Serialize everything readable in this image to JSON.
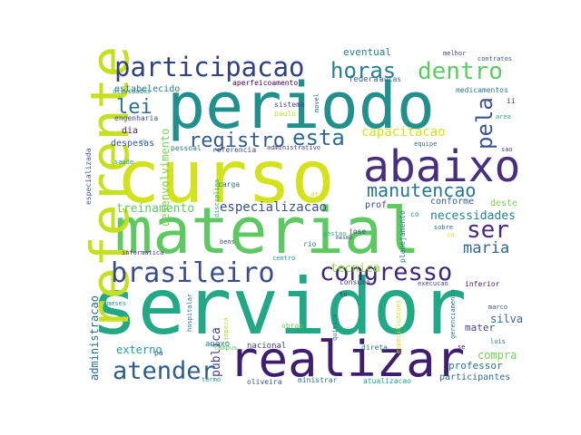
{
  "palette": {
    "yellow": "#d2e21b",
    "lime": "#7ad151",
    "green": "#5ec962",
    "teal": "#22a884",
    "cyan": "#1f9a8a",
    "blue": "#2a788e",
    "indigo": "#3b528b",
    "purple": "#472f7d",
    "dark": "#440154"
  },
  "words": [
    {
      "text": "servidor",
      "color": "#22a884"
    },
    {
      "text": "curso",
      "color": "#d2e21b"
    },
    {
      "text": "periodo",
      "color": "#21908d"
    },
    {
      "text": "material",
      "color": "#5ec962"
    },
    {
      "text": "realizar",
      "color": "#3e1f6d"
    },
    {
      "text": "referente",
      "color": "#c6e021"
    },
    {
      "text": "abaixo",
      "color": "#472f7d"
    },
    {
      "text": "brasileiro",
      "color": "#3b4c8a"
    },
    {
      "text": "participacao",
      "color": "#31427f"
    },
    {
      "text": "congresso",
      "color": "#3e2a71"
    },
    {
      "text": "atender",
      "color": "#2c5e8a"
    },
    {
      "text": "dentro",
      "color": "#5ec962"
    },
    {
      "text": "horas",
      "color": "#277f8e"
    },
    {
      "text": "esta",
      "color": "#2e6b8e"
    },
    {
      "text": "registro",
      "color": "#345c8d"
    },
    {
      "text": "lei",
      "color": "#2c728e"
    },
    {
      "text": "pela",
      "color": "#3b528b"
    },
    {
      "text": "ser",
      "color": "#472a7a"
    },
    {
      "text": "manutencao",
      "color": "#2a768e"
    },
    {
      "text": "maria",
      "color": "#30698e"
    },
    {
      "text": "capacitacao",
      "color": "#d2e21b"
    },
    {
      "text": "especializacao",
      "color": "#3b528b"
    },
    {
      "text": "treinamento",
      "color": "#5ec962"
    },
    {
      "text": "necessidades",
      "color": "#26828e"
    },
    {
      "text": "tecnica",
      "color": "#95d840"
    },
    {
      "text": "desenvolvimento",
      "color": "#7ad151"
    },
    {
      "text": "publica",
      "color": "#424086"
    },
    {
      "text": "administracao",
      "color": "#2d708e"
    },
    {
      "text": "externo",
      "color": "#1fa187"
    },
    {
      "text": "silva",
      "color": "#31688e"
    },
    {
      "text": "compra",
      "color": "#73d056"
    },
    {
      "text": "professor",
      "color": "#2c728e"
    },
    {
      "text": "mater",
      "color": "#3f4889"
    },
    {
      "text": "eventual",
      "color": "#297b8e"
    },
    {
      "text": "estabelecido",
      "color": "#287d8e"
    },
    {
      "text": "despesas",
      "color": "#3a548c"
    },
    {
      "text": "dia",
      "color": "#481f70"
    },
    {
      "text": "conforme",
      "color": "#365d8d"
    },
    {
      "text": "deste",
      "color": "#7ad151"
    },
    {
      "text": "prof",
      "color": "#3e4a89"
    },
    {
      "text": "federal",
      "color": "#35608d"
    },
    {
      "text": "aulas",
      "color": "#31688e"
    },
    {
      "text": "aperfeicoamento",
      "color": "#440154"
    },
    {
      "text": "atividades",
      "color": "#25858e"
    },
    {
      "text": "medicamentos",
      "color": "#2a788e"
    },
    {
      "text": "engenharia",
      "color": "#3e4c8a"
    },
    {
      "text": "sistema",
      "color": "#414487"
    },
    {
      "text": "paulo",
      "color": "#c0df25"
    },
    {
      "text": "movel",
      "color": "#2e6e8e"
    },
    {
      "text": "area",
      "color": "#22a785"
    },
    {
      "text": "ii",
      "color": "#472d7b"
    },
    {
      "text": "melhor",
      "color": "#424186"
    },
    {
      "text": "contratos",
      "color": "#3a538b"
    },
    {
      "text": "equipe",
      "color": "#2d708e"
    },
    {
      "text": "sao",
      "color": "#423f85"
    },
    {
      "text": "pessoal",
      "color": "#287c8e"
    },
    {
      "text": "referencia",
      "color": "#3e4a89"
    },
    {
      "text": "administrativo",
      "color": "#414487"
    },
    {
      "text": "especializada",
      "color": "#38588c"
    },
    {
      "text": "saude",
      "color": "#1f968b"
    },
    {
      "text": "carga",
      "color": "#2c738e"
    },
    {
      "text": "disciplina",
      "color": "#22a785"
    },
    {
      "text": "df",
      "color": "#c8e020"
    },
    {
      "text": "jose",
      "color": "#3f4889"
    },
    {
      "text": "planejamento",
      "color": "#2c728e"
    },
    {
      "text": "sobre",
      "color": "#31688e"
    },
    {
      "text": "gestao",
      "color": "#35b779"
    },
    {
      "text": "co",
      "color": "#1f998a"
    },
    {
      "text": "bens",
      "color": "#3b528b"
    },
    {
      "text": "rio",
      "color": "#2d708e"
    },
    {
      "text": "centro",
      "color": "#1f9e89"
    },
    {
      "text": "informatica",
      "color": "#472c7a"
    },
    {
      "text": "consumo",
      "color": "#424086"
    },
    {
      "text": "execucao",
      "color": "#404688"
    },
    {
      "text": "inferior",
      "color": "#481a6c"
    },
    {
      "text": "to",
      "color": "#46307e"
    },
    {
      "text": "meses",
      "color": "#1f948c"
    },
    {
      "text": "hospitalar",
      "color": "#2a788e"
    },
    {
      "text": "limpeza",
      "color": "#b5de2b"
    },
    {
      "text": "obras",
      "color": "#6ccd5a"
    },
    {
      "text": "quimica",
      "color": "#2e6e8e"
    },
    {
      "text": "especificacoes",
      "color": "#d2e21b"
    },
    {
      "text": "gerenciamento",
      "color": "#2a788e"
    },
    {
      "text": "marco",
      "color": "#3c4f8a"
    },
    {
      "text": "mesmo",
      "color": "#3b528b"
    },
    {
      "text": "pa",
      "color": "#355f8d"
    },
    {
      "text": "anexo",
      "color": "#25848e"
    },
    {
      "text": "nacional",
      "color": "#3e4989"
    },
    {
      "text": "direta",
      "color": "#2c728e"
    },
    {
      "text": "campus",
      "color": "#5ec962"
    },
    {
      "text": "termo",
      "color": "#21918c"
    },
    {
      "text": "oliveira",
      "color": "#3b528b"
    },
    {
      "text": "ministrar",
      "color": "#29798e"
    },
    {
      "text": "atualizacao",
      "color": "#22a884"
    },
    {
      "text": "participantes",
      "color": "#2e6e8e"
    },
    {
      "text": "luis",
      "color": "#2c728e"
    },
    {
      "text": "se",
      "color": "#471365"
    },
    {
      "text": "ia",
      "color": "#d8e219"
    },
    {
      "text": "en",
      "color": "#20a386"
    }
  ]
}
